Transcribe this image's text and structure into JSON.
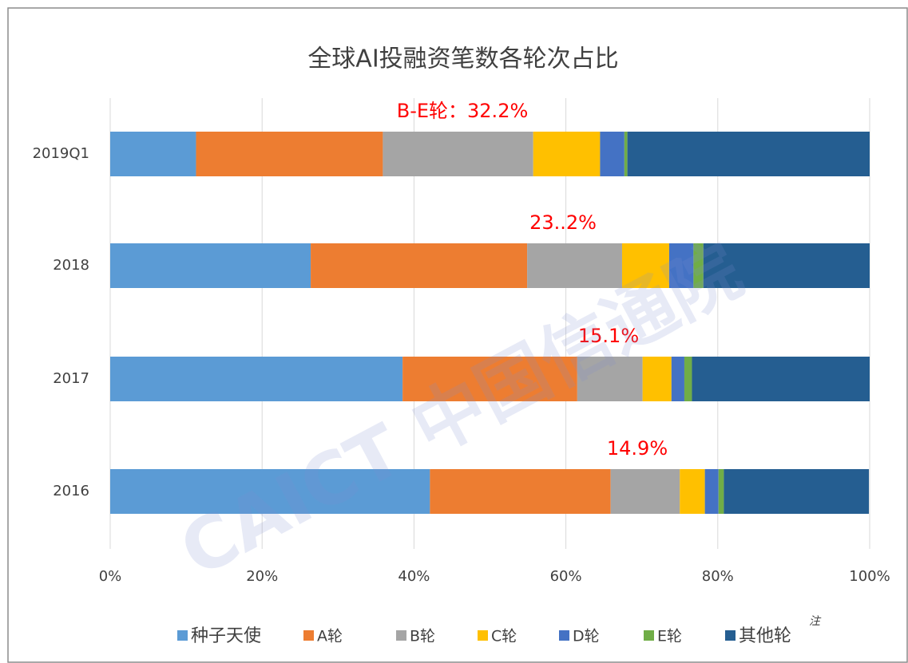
{
  "chart_data": {
    "type": "stacked_barh",
    "title": "全球AI投融资笔数各轮次占比",
    "categories": [
      "2019Q1",
      "2018",
      "2017",
      "2016"
    ],
    "series": [
      {
        "name": "种子天使",
        "color": "#5b9bd5",
        "values": [
          11.3,
          26.4,
          38.5,
          42.1
        ]
      },
      {
        "name": "A轮",
        "color": "#ed7d31",
        "values": [
          24.6,
          28.5,
          23.0,
          23.8
        ]
      },
      {
        "name": "B轮",
        "color": "#a5a5a5",
        "values": [
          19.8,
          12.5,
          8.6,
          9.1
        ]
      },
      {
        "name": "C轮",
        "color": "#ffc000",
        "values": [
          8.8,
          6.2,
          3.8,
          3.3
        ]
      },
      {
        "name": "D轮",
        "color": "#4472c4",
        "values": [
          3.2,
          3.2,
          1.7,
          1.8
        ]
      },
      {
        "name": "E轮",
        "color": "#70ad47",
        "values": [
          0.4,
          1.3,
          1.0,
          0.7
        ]
      },
      {
        "name": "其他轮",
        "color": "#255e91",
        "values": [
          31.9,
          21.9,
          23.4,
          19.1
        ]
      }
    ],
    "legend_note": "注",
    "annotations": [
      "B-E轮：32.2%",
      "23..2%",
      "15.1%",
      "14.9%"
    ],
    "xlim": [
      0,
      100
    ],
    "xticks": [
      {
        "value": 0,
        "label": "0%"
      },
      {
        "value": 20,
        "label": "20%"
      },
      {
        "value": 40,
        "label": "40%"
      },
      {
        "value": 60,
        "label": "60%"
      },
      {
        "value": 80,
        "label": "80%"
      },
      {
        "value": 100,
        "label": "100%"
      }
    ],
    "grid": true,
    "watermark": "CAICT 中国信通院"
  }
}
